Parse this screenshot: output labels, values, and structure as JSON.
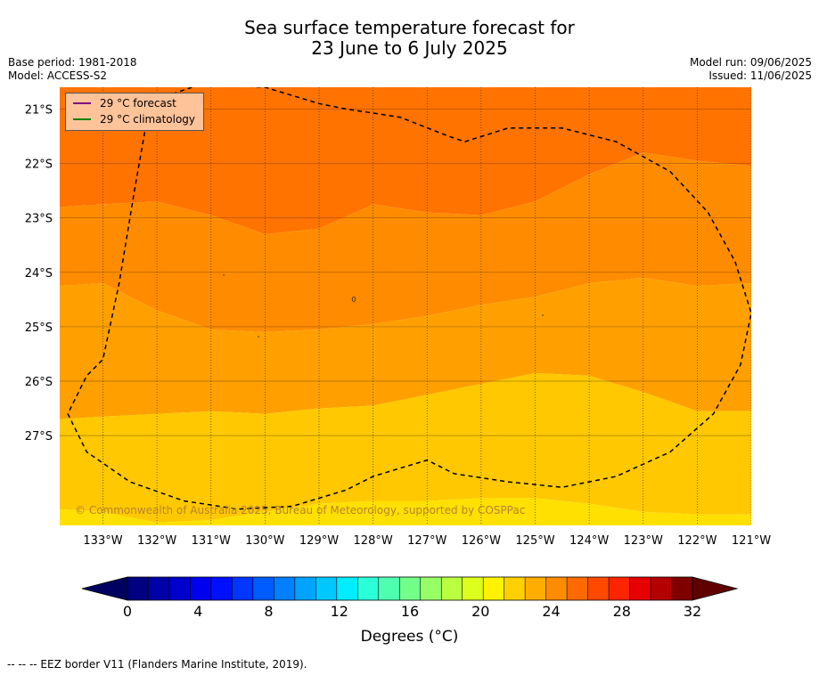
{
  "header": {
    "title_line1": "Sea surface temperature forecast for",
    "title_line2": "23 June to 6 July 2025",
    "base_period": "Base period: 1981-2018",
    "model": "Model: ACCESS-S2",
    "model_run": "Model run: 09/06/2025",
    "issued": "Issued: 11/06/2025"
  },
  "legend": {
    "forecast_label": "29 °C  forecast",
    "climatology_label": "29 °C  climatology",
    "forecast_color": "#800080",
    "climatology_color": "#008000"
  },
  "copyright": "© Commonwealth of Australia 2025, Bureau of Meteorology, supported by COSPPac",
  "colorbar": {
    "label": "Degrees (°C)",
    "colors": [
      "#000080",
      "#0000a8",
      "#0000cc",
      "#0000ee",
      "#0010ff",
      "#0036ff",
      "#005cff",
      "#0080ff",
      "#00a4ff",
      "#00c8ff",
      "#00ecff",
      "#2affd8",
      "#4effaf",
      "#72ff8a",
      "#96ff66",
      "#baff40",
      "#ddff1c",
      "#fff200",
      "#ffd000",
      "#ffae00",
      "#ff8c00",
      "#ff6a00",
      "#ff4800",
      "#ff2400",
      "#e60000",
      "#b40000",
      "#800000"
    ],
    "ticks": [
      "0",
      "4",
      "8",
      "12",
      "16",
      "20",
      "24",
      "28",
      "32"
    ],
    "min": 0,
    "max": 32,
    "under_color": "#000060",
    "over_color": "#600000"
  },
  "footnote": "--  --  -- EEZ border V11 (Flanders Marine Institute, 2019).",
  "chart_data": {
    "type": "heatmap",
    "title": "Sea surface temperature forecast for 23 June to 6 July 2025",
    "xlabel": "",
    "ylabel": "",
    "x_ticks": [
      "133°W",
      "132°W",
      "131°W",
      "130°W",
      "129°W",
      "128°W",
      "127°W",
      "126°W",
      "125°W",
      "124°W",
      "123°W",
      "122°W",
      "121°W"
    ],
    "x_tick_values": [
      -133,
      -132,
      -131,
      -130,
      -129,
      -128,
      -127,
      -126,
      -125,
      -124,
      -123,
      -122,
      -121
    ],
    "y_ticks": [
      "21°S",
      "22°S",
      "23°S",
      "24°S",
      "25°S",
      "26°S",
      "27°S"
    ],
    "y_tick_values": [
      -21,
      -22,
      -23,
      -24,
      -25,
      -26,
      -27
    ],
    "xlim": [
      -133.8,
      -121.0
    ],
    "ylim": [
      -28.65,
      -20.6
    ],
    "grid": true,
    "legend_position": "top-left",
    "contour_levels": [
      {
        "range": "27-28",
        "color": "#ff7300"
      },
      {
        "range": "26-27",
        "color": "#ff8c00"
      },
      {
        "range": "25-26",
        "color": "#ffa000"
      },
      {
        "range": "24-25",
        "color": "#ffc800"
      },
      {
        "range": "23-24",
        "color": "#ffe000"
      }
    ],
    "boundaries_lat_by_lon": {
      "lon": [
        -133.8,
        -133.0,
        -132.0,
        -131.0,
        -130.0,
        -129.0,
        -128.0,
        -127.0,
        -126.0,
        -125.0,
        -124.0,
        -123.0,
        -122.0,
        -121.0
      ],
      "b_27_26": [
        -22.8,
        -22.75,
        -22.7,
        -22.95,
        -23.3,
        -23.2,
        -22.75,
        -22.9,
        -22.95,
        -22.7,
        -22.2,
        -21.8,
        -21.95,
        -22.05
      ],
      "b_26_25": [
        -24.25,
        -24.2,
        -24.7,
        -25.05,
        -25.1,
        -25.05,
        -24.95,
        -24.8,
        -24.6,
        -24.45,
        -24.2,
        -24.1,
        -24.25,
        -24.2
      ],
      "b_25_24": [
        -26.7,
        -26.65,
        -26.6,
        -26.55,
        -26.6,
        -26.5,
        -26.45,
        -26.25,
        -26.05,
        -25.85,
        -25.9,
        -26.2,
        -26.55,
        -26.55
      ],
      "b_24_23": [
        -28.35,
        -28.4,
        -28.6,
        -28.55,
        -28.4,
        -28.25,
        -28.2,
        -28.2,
        -28.15,
        -28.15,
        -28.25,
        -28.4,
        -28.45,
        -28.45
      ]
    },
    "eez_border": [
      [
        -131.2,
        -20.55
      ],
      [
        -130.0,
        -20.6
      ],
      [
        -129.0,
        -20.9
      ],
      [
        -128.5,
        -21.0
      ],
      [
        -127.5,
        -21.15
      ],
      [
        -126.6,
        -21.5
      ],
      [
        -126.3,
        -21.6
      ],
      [
        -125.5,
        -21.35
      ],
      [
        -124.5,
        -21.35
      ],
      [
        -123.5,
        -21.6
      ],
      [
        -122.5,
        -22.15
      ],
      [
        -121.8,
        -22.9
      ],
      [
        -121.3,
        -23.8
      ],
      [
        -121.0,
        -24.75
      ],
      [
        -121.2,
        -25.7
      ],
      [
        -121.7,
        -26.6
      ],
      [
        -122.5,
        -27.3
      ],
      [
        -123.5,
        -27.75
      ],
      [
        -124.5,
        -27.95
      ],
      [
        -125.5,
        -27.85
      ],
      [
        -126.5,
        -27.7
      ],
      [
        -127.0,
        -27.45
      ],
      [
        -127.5,
        -27.6
      ],
      [
        -128.0,
        -27.75
      ],
      [
        -128.5,
        -28.0
      ],
      [
        -129.5,
        -28.3
      ],
      [
        -130.5,
        -28.35
      ],
      [
        -131.5,
        -28.2
      ],
      [
        -132.5,
        -27.85
      ],
      [
        -133.3,
        -27.3
      ],
      [
        -133.65,
        -26.6
      ],
      [
        -133.3,
        -25.9
      ],
      [
        -133.0,
        -25.6
      ],
      [
        -132.7,
        -24.2
      ],
      [
        -132.4,
        -22.4
      ],
      [
        -132.15,
        -21.0
      ],
      [
        -131.8,
        -20.75
      ],
      [
        -131.2,
        -20.55
      ]
    ]
  }
}
